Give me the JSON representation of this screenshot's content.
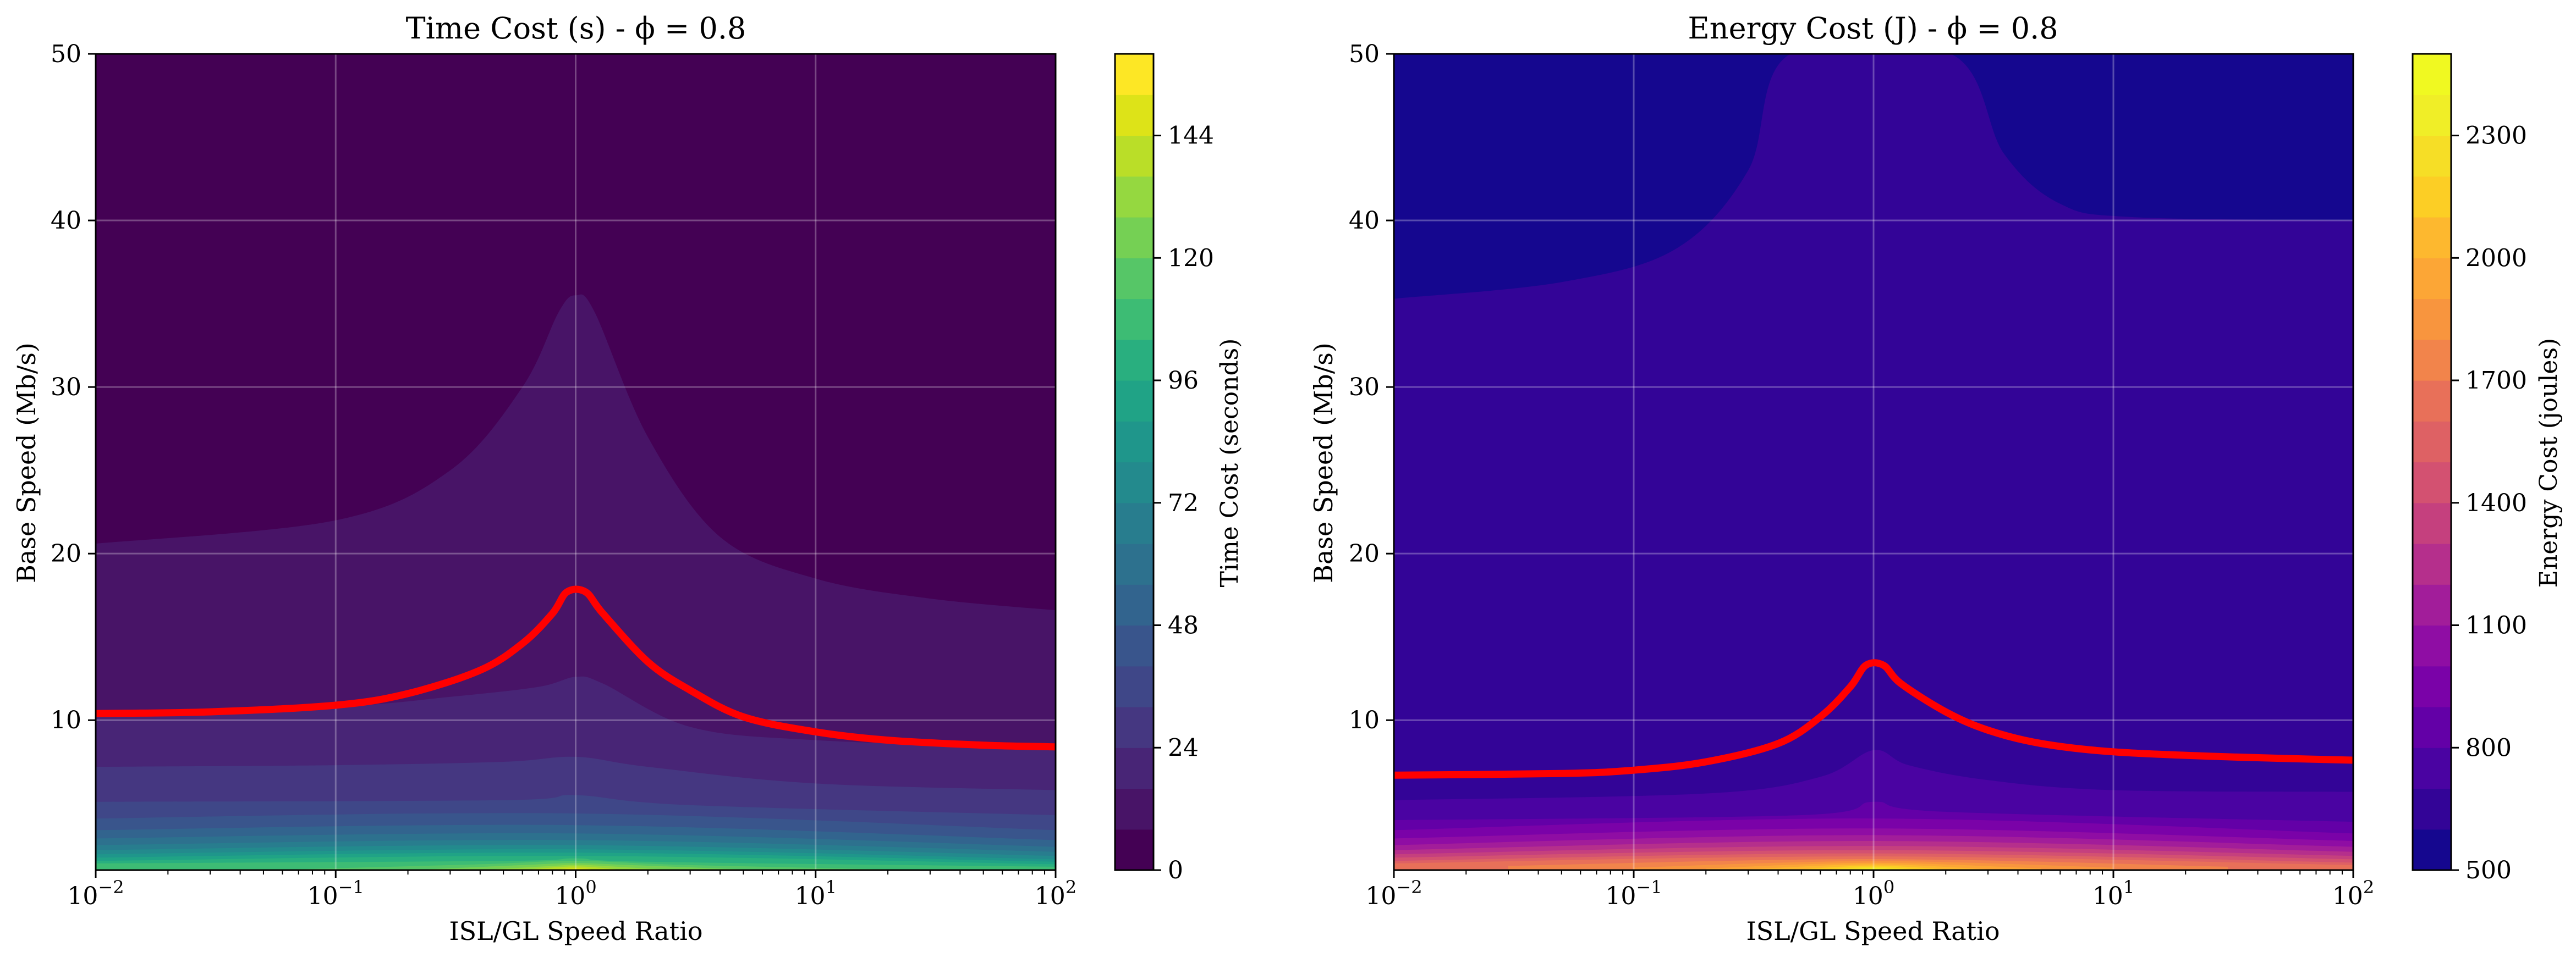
{
  "figure": {
    "background": "#ffffff"
  },
  "chart_data": [
    {
      "type": "heatmap",
      "title": "Time Cost (s) - ϕ = 0.8",
      "xlabel": "ISL/GL Speed Ratio",
      "ylabel": "Base Speed (Mb/s)",
      "x_scale": "log",
      "xlim": [
        0.01,
        100
      ],
      "ylim": [
        1,
        50
      ],
      "x_ticks": [
        {
          "value": 0.01,
          "base": "10",
          "exp": "−2"
        },
        {
          "value": 0.1,
          "base": "10",
          "exp": "−1"
        },
        {
          "value": 1,
          "base": "10",
          "exp": "0"
        },
        {
          "value": 10,
          "base": "10",
          "exp": "1"
        },
        {
          "value": 100,
          "base": "10",
          "exp": "2"
        }
      ],
      "y_ticks": [
        10,
        20,
        30,
        40,
        50
      ],
      "grid": true,
      "colormap": "viridis",
      "colorbar": {
        "label": "Time Cost (seconds)",
        "min": 0,
        "max": 160,
        "levels": 20,
        "ticks": [
          0,
          24,
          48,
          72,
          96,
          120,
          144
        ],
        "colors": [
          "#440154",
          "#481467",
          "#482576",
          "#453781",
          "#3f4788",
          "#39558c",
          "#32648e",
          "#2d718e",
          "#287d8e",
          "#238a8d",
          "#1f968b",
          "#20a386",
          "#29af7f",
          "#3dbc74",
          "#56c667",
          "#75d054",
          "#95d840",
          "#bade28",
          "#dde318",
          "#fde725"
        ]
      },
      "contour_boundaries": [
        {
          "level": 8,
          "points": [
            [
              0.01,
              20.6
            ],
            [
              0.1,
              22
            ],
            [
              0.3,
              25
            ],
            [
              0.6,
              30
            ],
            [
              0.85,
              34.5
            ],
            [
              1,
              35.5
            ],
            [
              1.2,
              34.5
            ],
            [
              2,
              27
            ],
            [
              4,
              21
            ],
            [
              10,
              18.5
            ],
            [
              30,
              17.3
            ],
            [
              100,
              16.6
            ]
          ]
        },
        {
          "level": 16,
          "points": [
            [
              0.01,
              10.3
            ],
            [
              0.1,
              10.8
            ],
            [
              0.3,
              11.4
            ],
            [
              0.7,
              12
            ],
            [
              1,
              12.6
            ],
            [
              1.3,
              12.2
            ],
            [
              3,
              9.6
            ],
            [
              10,
              8.8
            ],
            [
              100,
              8.3
            ]
          ]
        },
        {
          "level": 24,
          "points": [
            [
              0.01,
              7.2
            ],
            [
              0.1,
              7.3
            ],
            [
              0.5,
              7.5
            ],
            [
              1,
              7.8
            ],
            [
              2,
              7.2
            ],
            [
              10,
              6.2
            ],
            [
              100,
              5.8
            ]
          ]
        },
        {
          "level": 32,
          "points": [
            [
              0.01,
              5.1
            ],
            [
              0.5,
              5.2
            ],
            [
              1,
              5.5
            ],
            [
              3,
              4.9
            ],
            [
              100,
              4.3
            ]
          ]
        },
        {
          "level": 40,
          "points": [
            [
              0.01,
              4.1
            ],
            [
              1,
              4.4
            ],
            [
              100,
              3.4
            ]
          ]
        },
        {
          "level": 48,
          "points": [
            [
              0.01,
              3.4
            ],
            [
              1,
              3.7
            ],
            [
              100,
              2.8
            ]
          ]
        },
        {
          "level": 56,
          "points": [
            [
              0.01,
              2.9
            ],
            [
              1,
              3.2
            ],
            [
              100,
              2.4
            ]
          ]
        },
        {
          "level": 64,
          "points": [
            [
              0.01,
              2.5
            ],
            [
              1,
              2.8
            ],
            [
              100,
              2.1
            ]
          ]
        },
        {
          "level": 72,
          "points": [
            [
              0.01,
              2.2
            ],
            [
              1,
              2.5
            ],
            [
              100,
              1.85
            ]
          ]
        },
        {
          "level": 80,
          "points": [
            [
              0.01,
              1.95
            ],
            [
              1,
              2.25
            ],
            [
              100,
              1.65
            ]
          ]
        },
        {
          "level": 88,
          "points": [
            [
              0.01,
              1.75
            ],
            [
              1,
              2.05
            ],
            [
              100,
              1.5
            ]
          ]
        },
        {
          "level": 96,
          "points": [
            [
              0.01,
              1.55
            ],
            [
              1,
              1.85
            ],
            [
              100,
              1.35
            ]
          ]
        },
        {
          "level": 104,
          "points": [
            [
              0.01,
              1.4
            ],
            [
              0.5,
              1.55
            ],
            [
              1,
              1.7
            ],
            [
              2,
              1.5
            ],
            [
              100,
              1.2
            ]
          ]
        },
        {
          "level": 112,
          "points": [
            [
              0.05,
              1
            ],
            [
              0.4,
              1.35
            ],
            [
              1,
              1.55
            ],
            [
              3,
              1.3
            ],
            [
              30,
              1
            ]
          ]
        },
        {
          "level": 120,
          "points": [
            [
              0.2,
              1
            ],
            [
              0.6,
              1.3
            ],
            [
              1,
              1.42
            ],
            [
              1.7,
              1.3
            ],
            [
              6,
              1
            ]
          ]
        },
        {
          "level": 128,
          "points": [
            [
              0.4,
              1
            ],
            [
              0.8,
              1.25
            ],
            [
              1,
              1.32
            ],
            [
              1.3,
              1.25
            ],
            [
              2.5,
              1
            ]
          ]
        },
        {
          "level": 136,
          "points": [
            [
              0.6,
              1
            ],
            [
              1,
              1.22
            ],
            [
              1.6,
              1
            ]
          ]
        },
        {
          "level": 144,
          "points": [
            [
              0.8,
              1
            ],
            [
              1,
              1.12
            ],
            [
              1.25,
              1
            ]
          ]
        }
      ],
      "red_curve": [
        [
          0.01,
          10.4
        ],
        [
          0.03,
          10.5
        ],
        [
          0.1,
          10.9
        ],
        [
          0.2,
          11.6
        ],
        [
          0.4,
          13
        ],
        [
          0.6,
          14.6
        ],
        [
          0.8,
          16.4
        ],
        [
          0.92,
          17.7
        ],
        [
          1.1,
          17.7
        ],
        [
          1.3,
          16.4
        ],
        [
          2,
          13.5
        ],
        [
          3,
          11.8
        ],
        [
          5,
          10.2
        ],
        [
          10,
          9.3
        ],
        [
          20,
          8.8
        ],
        [
          50,
          8.5
        ],
        [
          100,
          8.4
        ]
      ],
      "red_color": "#ff0000"
    },
    {
      "type": "heatmap",
      "title": "Energy Cost (J) - ϕ = 0.8",
      "xlabel": "ISL/GL Speed Ratio",
      "ylabel": "Base Speed (Mb/s)",
      "x_scale": "log",
      "xlim": [
        0.01,
        100
      ],
      "ylim": [
        1,
        50
      ],
      "x_ticks": [
        {
          "value": 0.01,
          "base": "10",
          "exp": "−2"
        },
        {
          "value": 0.1,
          "base": "10",
          "exp": "−1"
        },
        {
          "value": 1,
          "base": "10",
          "exp": "0"
        },
        {
          "value": 10,
          "base": "10",
          "exp": "1"
        },
        {
          "value": 100,
          "base": "10",
          "exp": "2"
        }
      ],
      "y_ticks": [
        10,
        20,
        30,
        40,
        50
      ],
      "grid": true,
      "colormap": "plasma",
      "colorbar": {
        "label": "Energy Cost (joules)",
        "min": 500,
        "max": 2500,
        "levels": 20,
        "ticks": [
          500,
          800,
          1100,
          1400,
          1700,
          2000,
          2300
        ],
        "colors": [
          "#15078f",
          "#330497",
          "#4a03a2",
          "#6300a7",
          "#7a02a8",
          "#8f0da4",
          "#a21d9a",
          "#b52f8c",
          "#c5407e",
          "#d35171",
          "#de6164",
          "#e87059",
          "#f2844b",
          "#f8953e",
          "#fca636",
          "#fdb82f",
          "#fcce25",
          "#f6de26",
          "#f0ee27",
          "#f0f921"
        ]
      },
      "contour_boundaries": [
        {
          "level": 600,
          "region": "arch",
          "points": [
            [
              0.01,
              35.3
            ],
            [
              0.05,
              36.3
            ],
            [
              0.15,
              38.3
            ],
            [
              0.3,
              43
            ],
            [
              0.45,
              50
            ],
            [
              2.1,
              50
            ],
            [
              3.5,
              44
            ],
            [
              6,
              41
            ],
            [
              12,
              40.2
            ],
            [
              100,
              40
            ]
          ]
        },
        {
          "level": 700,
          "points": [
            [
              0.01,
              5.2
            ],
            [
              0.2,
              5.6
            ],
            [
              0.6,
              6.6
            ],
            [
              1,
              8.2
            ],
            [
              1.4,
              7.3
            ],
            [
              3,
              6.4
            ],
            [
              10,
              5.8
            ],
            [
              100,
              5.7
            ]
          ]
        },
        {
          "level": 800,
          "points": [
            [
              0.01,
              4.0
            ],
            [
              0.5,
              4.3
            ],
            [
              1,
              5.1
            ],
            [
              2,
              4.5
            ],
            [
              100,
              3.9
            ]
          ]
        },
        {
          "level": 900,
          "points": [
            [
              0.01,
              3.4
            ],
            [
              1,
              4.1
            ],
            [
              100,
              3.2
            ]
          ]
        },
        {
          "level": 1000,
          "points": [
            [
              0.01,
              2.9
            ],
            [
              1,
              3.5
            ],
            [
              100,
              2.75
            ]
          ]
        },
        {
          "level": 1100,
          "points": [
            [
              0.01,
              2.5
            ],
            [
              1,
              3.1
            ],
            [
              100,
              2.4
            ]
          ]
        },
        {
          "level": 1200,
          "points": [
            [
              0.01,
              2.2
            ],
            [
              1,
              2.75
            ],
            [
              100,
              2.1
            ]
          ]
        },
        {
          "level": 1300,
          "points": [
            [
              0.01,
              1.95
            ],
            [
              1,
              2.45
            ],
            [
              100,
              1.85
            ]
          ]
        },
        {
          "level": 1400,
          "points": [
            [
              0.01,
              1.75
            ],
            [
              1,
              2.2
            ],
            [
              100,
              1.65
            ]
          ]
        },
        {
          "level": 1500,
          "points": [
            [
              0.01,
              1.55
            ],
            [
              1,
              2.0
            ],
            [
              100,
              1.45
            ]
          ]
        },
        {
          "level": 1600,
          "points": [
            [
              0.01,
              1.4
            ],
            [
              1,
              1.82
            ],
            [
              100,
              1.3
            ]
          ]
        },
        {
          "level": 1700,
          "points": [
            [
              0.03,
              1.25
            ],
            [
              1,
              1.66
            ],
            [
              30,
              1.2
            ]
          ]
        },
        {
          "level": 1800,
          "points": [
            [
              0.1,
              1.15
            ],
            [
              1,
              1.54
            ],
            [
              10,
              1.15
            ]
          ]
        },
        {
          "level": 1900,
          "points": [
            [
              0.2,
              1.1
            ],
            [
              1,
              1.44
            ],
            [
              5,
              1.1
            ]
          ]
        },
        {
          "level": 2000,
          "points": [
            [
              0.3,
              1.05
            ],
            [
              1,
              1.35
            ],
            [
              3,
              1.05
            ]
          ]
        },
        {
          "level": 2100,
          "points": [
            [
              0.45,
              1
            ],
            [
              1,
              1.27
            ],
            [
              2.2,
              1
            ]
          ]
        },
        {
          "level": 2200,
          "points": [
            [
              0.6,
              1
            ],
            [
              1,
              1.19
            ],
            [
              1.6,
              1
            ]
          ]
        },
        {
          "level": 2300,
          "points": [
            [
              0.75,
              1
            ],
            [
              1,
              1.12
            ],
            [
              1.3,
              1
            ]
          ]
        }
      ],
      "red_curve": [
        [
          0.01,
          6.7
        ],
        [
          0.05,
          6.8
        ],
        [
          0.1,
          7.0
        ],
        [
          0.2,
          7.5
        ],
        [
          0.4,
          8.6
        ],
        [
          0.6,
          10.2
        ],
        [
          0.8,
          12.0
        ],
        [
          0.93,
          13.3
        ],
        [
          1.1,
          13.3
        ],
        [
          1.3,
          12.2
        ],
        [
          2,
          10.5
        ],
        [
          3,
          9.4
        ],
        [
          5,
          8.6
        ],
        [
          10,
          8.1
        ],
        [
          30,
          7.8
        ],
        [
          100,
          7.6
        ]
      ],
      "red_color": "#ff0000"
    }
  ]
}
